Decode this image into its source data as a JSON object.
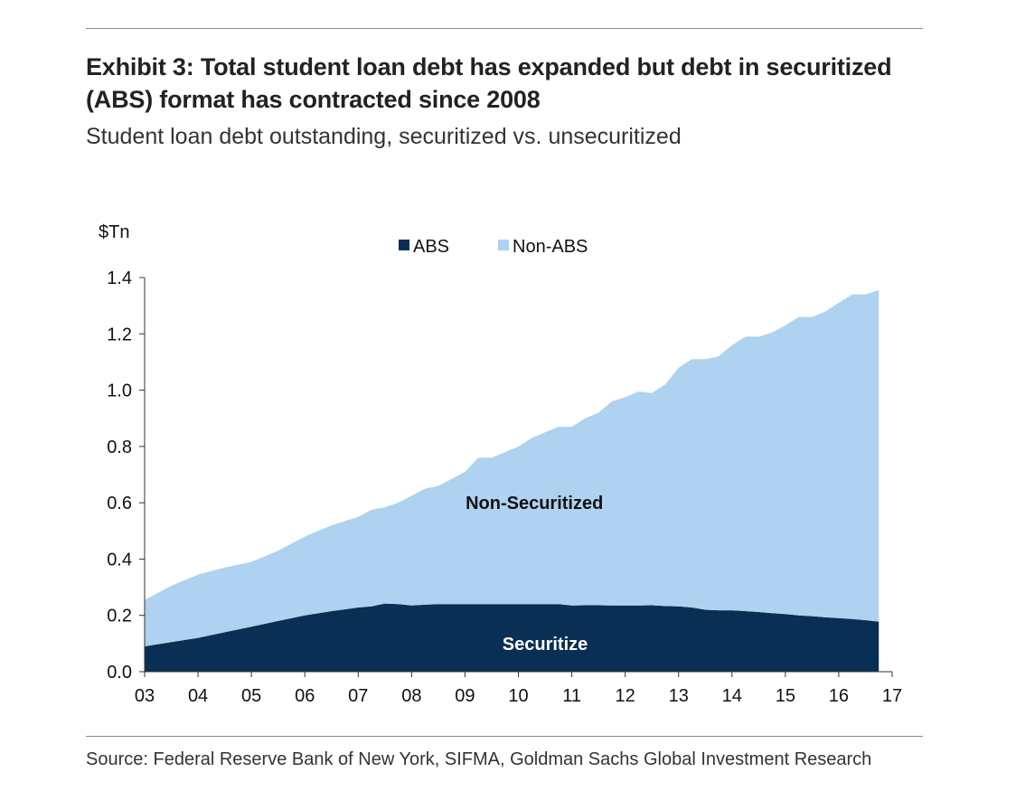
{
  "header": {
    "title": "Exhibit 3: Total student loan debt has expanded but debt in securitized (ABS) format has contracted since 2008",
    "subtitle": "Student loan debt outstanding, securitized vs. unsecuritized"
  },
  "footer": {
    "source": "Source: Federal Reserve Bank of New York, SIFMA, Goldman Sachs Global Investment Research"
  },
  "colors": {
    "abs": "#0a2f54",
    "non_abs": "#aed2ef",
    "axis": "#333333",
    "text": "#111111",
    "label_on_dark": "#ffffff"
  },
  "chart_data": {
    "type": "area",
    "stacked": true,
    "ylabel": "$Tn",
    "ylim": [
      0,
      1.4
    ],
    "yticks": [
      0.0,
      0.2,
      0.4,
      0.6,
      0.8,
      1.0,
      1.2,
      1.4
    ],
    "ytick_labels": [
      "0.0",
      "0.2",
      "0.4",
      "0.6",
      "0.8",
      "1.0",
      "1.2",
      "1.4"
    ],
    "xlim": [
      2003,
      2017
    ],
    "xticks": [
      2003,
      2004,
      2005,
      2006,
      2007,
      2008,
      2009,
      2010,
      2011,
      2012,
      2013,
      2014,
      2015,
      2016,
      2017
    ],
    "xtick_labels": [
      "03",
      "04",
      "05",
      "06",
      "07",
      "08",
      "09",
      "10",
      "11",
      "12",
      "13",
      "14",
      "15",
      "16",
      "17"
    ],
    "legend": {
      "position": "top-center",
      "entries": [
        "ABS",
        "Non-ABS"
      ]
    },
    "annotations": [
      {
        "text": "Non-Securitized",
        "x": 2010.3,
        "y": 0.6,
        "on": "light"
      },
      {
        "text": "Securitize",
        "x": 2010.5,
        "y": 0.1,
        "on": "dark"
      }
    ],
    "x": [
      2003.0,
      2003.5,
      2004.0,
      2004.5,
      2005.0,
      2005.5,
      2006.0,
      2006.5,
      2007.0,
      2007.25,
      2007.5,
      2007.75,
      2008.0,
      2008.25,
      2008.5,
      2008.75,
      2009.0,
      2009.25,
      2009.5,
      2009.75,
      2010.0,
      2010.25,
      2010.5,
      2010.75,
      2011.0,
      2011.25,
      2011.5,
      2011.75,
      2012.0,
      2012.25,
      2012.5,
      2012.75,
      2013.0,
      2013.25,
      2013.5,
      2013.75,
      2014.0,
      2014.25,
      2014.5,
      2014.75,
      2015.0,
      2015.25,
      2015.5,
      2015.75,
      2016.0,
      2016.25,
      2016.5,
      2016.75
    ],
    "series": [
      {
        "name": "ABS",
        "values": [
          0.09,
          0.105,
          0.12,
          0.14,
          0.16,
          0.18,
          0.2,
          0.215,
          0.228,
          0.232,
          0.242,
          0.24,
          0.235,
          0.238,
          0.24,
          0.24,
          0.24,
          0.24,
          0.24,
          0.24,
          0.24,
          0.24,
          0.24,
          0.24,
          0.235,
          0.236,
          0.236,
          0.235,
          0.235,
          0.235,
          0.236,
          0.233,
          0.232,
          0.228,
          0.22,
          0.218,
          0.218,
          0.215,
          0.212,
          0.208,
          0.205,
          0.2,
          0.197,
          0.193,
          0.19,
          0.187,
          0.183,
          0.178
        ]
      },
      {
        "name": "Non-ABS",
        "values": [
          0.165,
          0.2,
          0.225,
          0.23,
          0.23,
          0.25,
          0.28,
          0.305,
          0.322,
          0.343,
          0.342,
          0.36,
          0.39,
          0.412,
          0.42,
          0.445,
          0.47,
          0.52,
          0.52,
          0.54,
          0.56,
          0.59,
          0.61,
          0.63,
          0.635,
          0.664,
          0.684,
          0.725,
          0.74,
          0.76,
          0.754,
          0.787,
          0.848,
          0.882,
          0.89,
          0.902,
          0.942,
          0.975,
          0.978,
          0.997,
          1.025,
          1.06,
          1.063,
          1.087,
          1.12,
          1.153,
          1.157,
          1.177
        ]
      }
    ]
  }
}
